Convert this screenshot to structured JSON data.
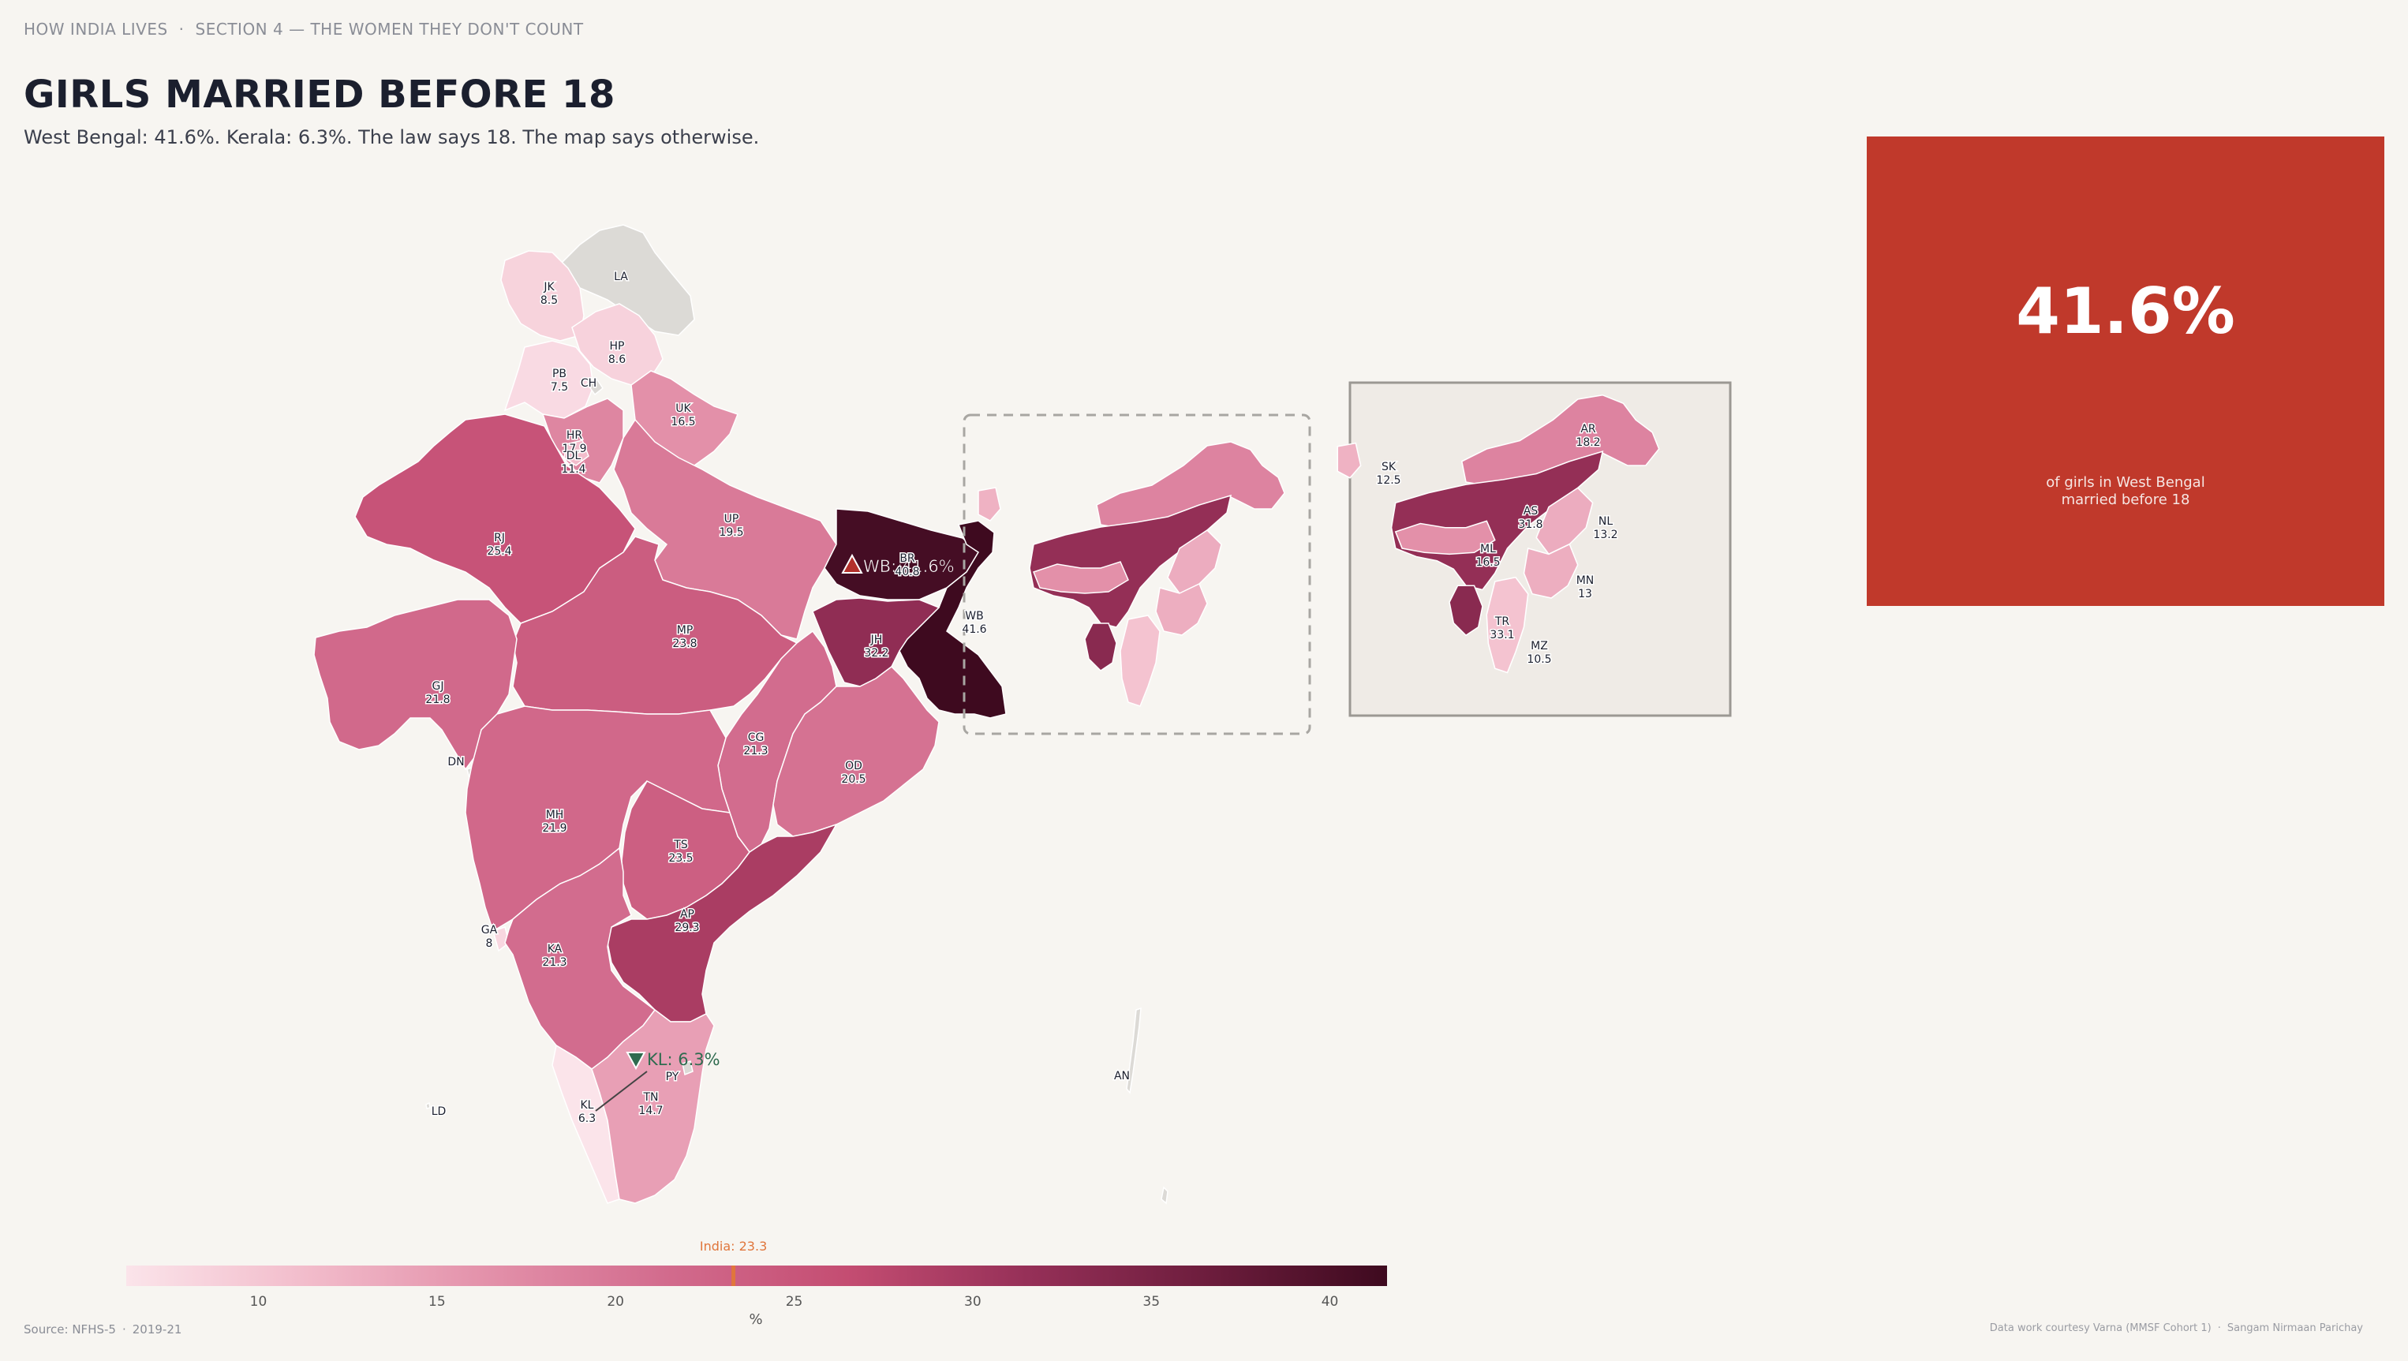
{
  "header": {
    "series": "HOW INDIA LIVES",
    "section": "SECTION 4 — THE WOMEN THEY DON'T COUNT",
    "title": "GIRLS MARRIED BEFORE 18",
    "subtitle": "West Bengal: 41.6%. Kerala: 6.3%. The law says 18. The map says otherwise."
  },
  "colors": {
    "background": "#f7f5f1",
    "ramp": [
      "#fbe4ea",
      "#f2bccb",
      "#e391aa",
      "#d26b8d",
      "#c44d72",
      "#963058",
      "#6d1d3d",
      "#3e0a1f"
    ],
    "no_data": "#dcdad6",
    "highlight_card": "#c0392b",
    "india_marker": "#e0763c",
    "high_marker": "#b3302b",
    "low_marker": "#2f6b4f"
  },
  "map_data": {
    "metric": "%",
    "states": [
      {
        "code": "JK",
        "value": 8.5
      },
      {
        "code": "LA",
        "value": null
      },
      {
        "code": "HP",
        "value": 8.6
      },
      {
        "code": "PB",
        "value": 7.5
      },
      {
        "code": "CH",
        "value": null
      },
      {
        "code": "UK",
        "value": 16.5
      },
      {
        "code": "HR",
        "value": 17.9
      },
      {
        "code": "DL",
        "value": 11.4
      },
      {
        "code": "RJ",
        "value": 25.4
      },
      {
        "code": "UP",
        "value": 19.5
      },
      {
        "code": "BR",
        "value": 40.8
      },
      {
        "code": "WB",
        "value": 41.6
      },
      {
        "code": "JH",
        "value": 32.2
      },
      {
        "code": "MP",
        "value": 23.8
      },
      {
        "code": "GJ",
        "value": 21.8
      },
      {
        "code": "DN",
        "value": null
      },
      {
        "code": "CG",
        "value": 21.3
      },
      {
        "code": "OD",
        "value": 20.5
      },
      {
        "code": "MH",
        "value": 21.9
      },
      {
        "code": "TS",
        "value": 23.5
      },
      {
        "code": "AP",
        "value": 29.3
      },
      {
        "code": "GA",
        "value": 8
      },
      {
        "code": "KA",
        "value": 21.3
      },
      {
        "code": "KL",
        "value": 6.3
      },
      {
        "code": "TN",
        "value": 14.7
      },
      {
        "code": "PY",
        "value": null
      },
      {
        "code": "LD",
        "value": null
      },
      {
        "code": "AN",
        "value": null
      },
      {
        "code": "SK",
        "value": 12.5
      },
      {
        "code": "AR",
        "value": 18.2
      },
      {
        "code": "AS",
        "value": 31.8
      },
      {
        "code": "NL",
        "value": 13.2
      },
      {
        "code": "ML",
        "value": 16.5
      },
      {
        "code": "MN",
        "value": 13
      },
      {
        "code": "TR",
        "value": 33.1
      },
      {
        "code": "MZ",
        "value": 10.5
      }
    ],
    "labels": [
      {
        "code": "JK",
        "text": "JK",
        "value_text": "8.5"
      },
      {
        "code": "LA",
        "text": "LA",
        "value_text": ""
      },
      {
        "code": "HP",
        "text": "HP",
        "value_text": "8.6"
      },
      {
        "code": "PB",
        "text": "PB",
        "value_text": "7.5"
      },
      {
        "code": "CH",
        "text": "CH",
        "value_text": ""
      },
      {
        "code": "UK",
        "text": "UK",
        "value_text": "16.5"
      },
      {
        "code": "HR",
        "text": "HR",
        "value_text": "17.9"
      },
      {
        "code": "DL",
        "text": "DL",
        "value_text": "11.4"
      },
      {
        "code": "RJ",
        "text": "RJ",
        "value_text": "25.4"
      },
      {
        "code": "UP",
        "text": "UP",
        "value_text": "19.5"
      },
      {
        "code": "BR",
        "text": "BR",
        "value_text": "40.8"
      },
      {
        "code": "WB",
        "text": "WB",
        "value_text": "41.6"
      },
      {
        "code": "JH",
        "text": "JH",
        "value_text": "32.2"
      },
      {
        "code": "MP",
        "text": "MP",
        "value_text": "23.8"
      },
      {
        "code": "GJ",
        "text": "GJ",
        "value_text": "21.8"
      },
      {
        "code": "DN",
        "text": "DN",
        "value_text": ""
      },
      {
        "code": "CG",
        "text": "CG",
        "value_text": "21.3"
      },
      {
        "code": "OD",
        "text": "OD",
        "value_text": "20.5"
      },
      {
        "code": "MH",
        "text": "MH",
        "value_text": "21.9"
      },
      {
        "code": "TS",
        "text": "TS",
        "value_text": "23.5"
      },
      {
        "code": "AP",
        "text": "AP",
        "value_text": "29.3"
      },
      {
        "code": "GA",
        "text": "GA",
        "value_text": "8"
      },
      {
        "code": "KA",
        "text": "KA",
        "value_text": "21.3"
      },
      {
        "code": "KL",
        "text": "KL",
        "value_text": "6.3"
      },
      {
        "code": "TN",
        "text": "TN",
        "value_text": "14.7"
      },
      {
        "code": "PY",
        "text": "PY",
        "value_text": ""
      },
      {
        "code": "LD",
        "text": "LD",
        "value_text": ""
      },
      {
        "code": "AN",
        "text": "AN",
        "value_text": ""
      },
      {
        "code": "SK",
        "text": "SK",
        "value_text": "12.5"
      },
      {
        "code": "AR",
        "text": "AR",
        "value_text": "18.2"
      },
      {
        "code": "AS",
        "text": "AS",
        "value_text": "31.8"
      },
      {
        "code": "NL",
        "text": "NL",
        "value_text": "13.2"
      },
      {
        "code": "ML",
        "text": "ML",
        "value_text": "16.5"
      },
      {
        "code": "MN",
        "text": "MN",
        "value_text": "13"
      },
      {
        "code": "TR",
        "text": "TR",
        "value_text": "33.1"
      },
      {
        "code": "MZ",
        "text": "MZ",
        "value_text": "10.5"
      }
    ],
    "callouts": {
      "high": "WB: 41.6%",
      "low": "KL: 6.3%"
    }
  },
  "legend": {
    "min": 6.3,
    "max": 41.6,
    "ticks": [
      10,
      15,
      20,
      25,
      30,
      35,
      40
    ],
    "unit": "%",
    "india_label": "India: 23.3",
    "india_value": 23.3
  },
  "stat_card": {
    "value": "41.6%",
    "caption": "of girls in West Bengal married before 18"
  },
  "footer": {
    "source": "Source: NFHS-5",
    "period": "2019-21",
    "credit": "Data work courtesy Varna (MMSF Cohort 1)",
    "author": "Sangam Nirmaan Parichay"
  }
}
